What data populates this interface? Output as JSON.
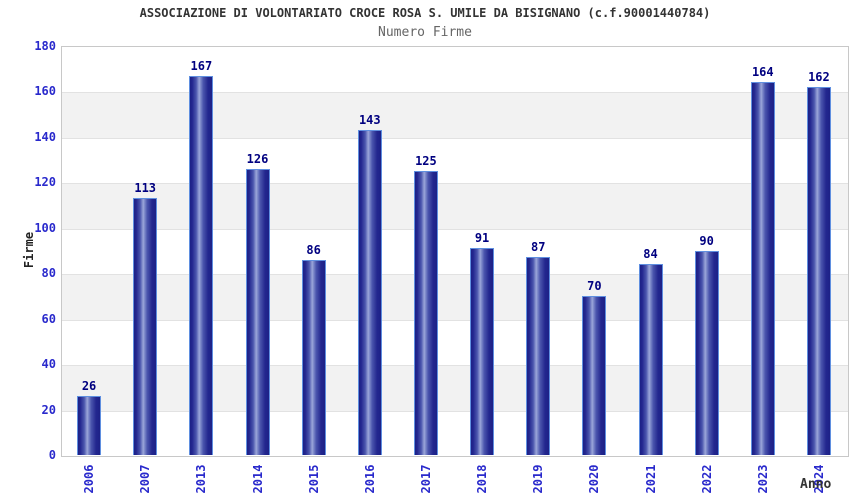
{
  "chart_data": {
    "type": "bar",
    "title": "ASSOCIAZIONE DI VOLONTARIATO CROCE ROSA S. UMILE DA BISIGNANO (c.f.90001440784)",
    "subtitle": "Numero Firme",
    "xlabel": "Anno",
    "ylabel": "Firme",
    "categories": [
      "2006",
      "2007",
      "2013",
      "2014",
      "2015",
      "2016",
      "2017",
      "2018",
      "2019",
      "2020",
      "2021",
      "2022",
      "2023",
      "2024"
    ],
    "values": [
      26,
      113,
      167,
      126,
      86,
      143,
      125,
      91,
      87,
      70,
      84,
      90,
      164,
      162
    ],
    "ylim": [
      0,
      180
    ],
    "ytick_step": 20,
    "yticks": [
      0,
      20,
      40,
      60,
      80,
      100,
      120,
      140,
      160,
      180
    ],
    "grid": "horizontal-alternating-bands",
    "legend": "none",
    "colors": {
      "tick_label_blue": "#2929cc",
      "value_label_navy": "#000080",
      "bar_edge_dark": "#1d2186",
      "bar_mid": "#4a55ad",
      "bar_highlight": "#9aa5d9",
      "bar_outline_light_blue": "#5f8fe0",
      "band_white": "#ffffff",
      "band_gray": "#f2f2f2",
      "gridline": "#e2e2e2",
      "plot_border": "#c8c8c8",
      "title_color": "#333333",
      "subtitle_color": "#666666"
    }
  }
}
